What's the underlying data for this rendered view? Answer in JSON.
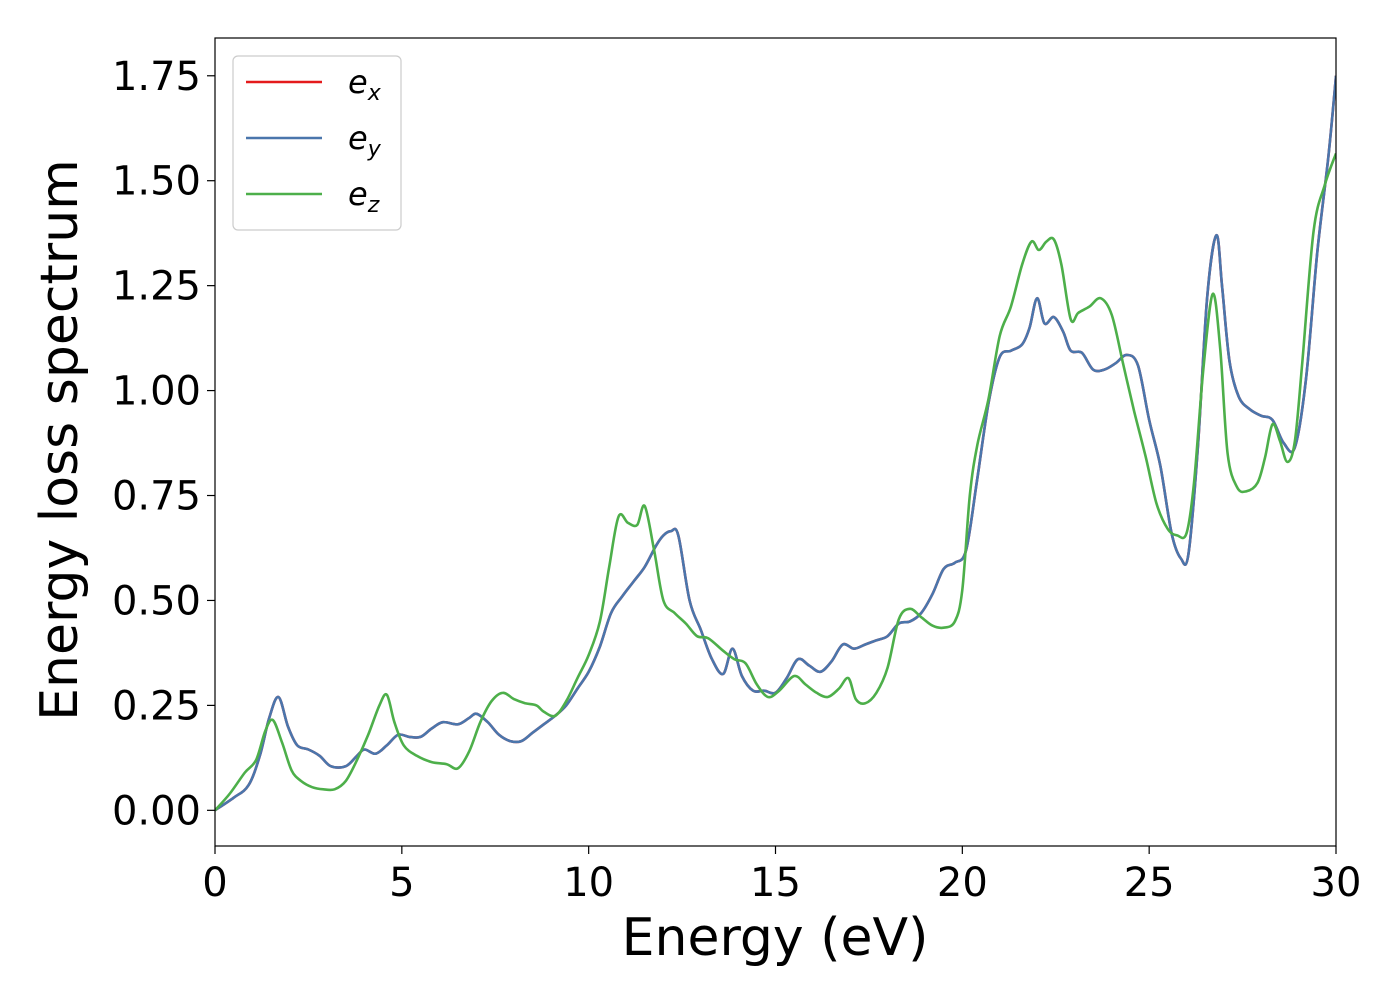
{
  "chart_data": {
    "type": "line",
    "title": "",
    "xlabel": "Energy (eV)",
    "ylabel": "Energy loss spectrum",
    "xlim": [
      0,
      30
    ],
    "ylim": [
      -0.085,
      1.84
    ],
    "xticks": [
      0,
      5,
      10,
      15,
      20,
      25,
      30
    ],
    "yticks": [
      0.0,
      0.25,
      0.5,
      0.75,
      1.0,
      1.25,
      1.5,
      1.75
    ],
    "xtick_labels": [
      "0",
      "5",
      "10",
      "15",
      "20",
      "25",
      "30"
    ],
    "ytick_labels": [
      "0.00",
      "0.25",
      "0.50",
      "0.75",
      "1.00",
      "1.25",
      "1.50",
      "1.75"
    ],
    "grid": false,
    "legend_position": "top-left",
    "series": [
      {
        "name": "e",
        "subscript": "x",
        "color": "#e41a1c",
        "note_hidden_under": "e_y",
        "x": [
          0,
          0.5,
          0.9,
          1.2,
          1.45,
          1.7,
          1.95,
          2.2,
          2.5,
          2.8,
          3.1,
          3.5,
          3.8,
          4.0,
          4.3,
          4.6,
          4.9,
          5.2,
          5.5,
          5.8,
          6.1,
          6.5,
          6.8,
          7.0,
          7.3,
          7.6,
          7.9,
          8.2,
          8.5,
          8.8,
          9.1,
          9.4,
          9.7,
          10.0,
          10.3,
          10.6,
          10.9,
          11.2,
          11.5,
          11.8,
          12.0,
          12.2,
          12.4,
          12.7,
          13.0,
          13.3,
          13.6,
          13.85,
          14.1,
          14.4,
          14.7,
          15.0,
          15.3,
          15.6,
          15.9,
          16.2,
          16.5,
          16.8,
          17.1,
          17.4,
          17.7,
          18.0,
          18.3,
          18.6,
          18.9,
          19.2,
          19.5,
          19.8,
          20.1,
          20.4,
          20.7,
          21.0,
          21.3,
          21.6,
          21.8,
          22.0,
          22.2,
          22.45,
          22.7,
          22.9,
          23.2,
          23.5,
          23.8,
          24.1,
          24.4,
          24.7,
          25.0,
          25.3,
          25.6,
          25.85,
          26.05,
          26.3,
          26.55,
          26.8,
          26.95,
          27.15,
          27.4,
          27.7,
          28.0,
          28.3,
          28.6,
          28.9,
          29.2,
          29.5,
          29.8,
          30.0
        ],
        "y": [
          0,
          0.03,
          0.06,
          0.13,
          0.22,
          0.27,
          0.2,
          0.155,
          0.145,
          0.13,
          0.105,
          0.105,
          0.13,
          0.145,
          0.135,
          0.155,
          0.18,
          0.175,
          0.175,
          0.195,
          0.21,
          0.205,
          0.22,
          0.23,
          0.21,
          0.18,
          0.165,
          0.165,
          0.185,
          0.205,
          0.225,
          0.25,
          0.29,
          0.33,
          0.39,
          0.47,
          0.51,
          0.545,
          0.58,
          0.63,
          0.655,
          0.665,
          0.655,
          0.5,
          0.43,
          0.36,
          0.325,
          0.385,
          0.32,
          0.285,
          0.285,
          0.28,
          0.315,
          0.36,
          0.345,
          0.33,
          0.355,
          0.395,
          0.385,
          0.395,
          0.405,
          0.415,
          0.445,
          0.45,
          0.47,
          0.515,
          0.575,
          0.59,
          0.62,
          0.79,
          0.97,
          1.08,
          1.095,
          1.11,
          1.15,
          1.22,
          1.16,
          1.175,
          1.14,
          1.095,
          1.09,
          1.05,
          1.05,
          1.065,
          1.085,
          1.06,
          0.93,
          0.82,
          0.66,
          0.6,
          0.61,
          0.86,
          1.22,
          1.37,
          1.25,
          1.07,
          0.985,
          0.955,
          0.94,
          0.93,
          0.875,
          0.865,
          1.03,
          1.33,
          1.56,
          1.75
        ]
      },
      {
        "name": "e",
        "subscript": "y",
        "color": "#4a76ac",
        "x": [
          0,
          0.5,
          0.9,
          1.2,
          1.45,
          1.7,
          1.95,
          2.2,
          2.5,
          2.8,
          3.1,
          3.5,
          3.8,
          4.0,
          4.3,
          4.6,
          4.9,
          5.2,
          5.5,
          5.8,
          6.1,
          6.5,
          6.8,
          7.0,
          7.3,
          7.6,
          7.9,
          8.2,
          8.5,
          8.8,
          9.1,
          9.4,
          9.7,
          10.0,
          10.3,
          10.6,
          10.9,
          11.2,
          11.5,
          11.8,
          12.0,
          12.2,
          12.4,
          12.7,
          13.0,
          13.3,
          13.6,
          13.85,
          14.1,
          14.4,
          14.7,
          15.0,
          15.3,
          15.6,
          15.9,
          16.2,
          16.5,
          16.8,
          17.1,
          17.4,
          17.7,
          18.0,
          18.3,
          18.6,
          18.9,
          19.2,
          19.5,
          19.8,
          20.1,
          20.4,
          20.7,
          21.0,
          21.3,
          21.6,
          21.8,
          22.0,
          22.2,
          22.45,
          22.7,
          22.9,
          23.2,
          23.5,
          23.8,
          24.1,
          24.4,
          24.7,
          25.0,
          25.3,
          25.6,
          25.85,
          26.05,
          26.3,
          26.55,
          26.8,
          26.95,
          27.15,
          27.4,
          27.7,
          28.0,
          28.3,
          28.6,
          28.9,
          29.2,
          29.5,
          29.8,
          30.0
        ],
        "y": [
          0,
          0.03,
          0.06,
          0.13,
          0.22,
          0.27,
          0.2,
          0.155,
          0.145,
          0.13,
          0.105,
          0.105,
          0.13,
          0.145,
          0.135,
          0.155,
          0.18,
          0.175,
          0.175,
          0.195,
          0.21,
          0.205,
          0.22,
          0.23,
          0.21,
          0.18,
          0.165,
          0.165,
          0.185,
          0.205,
          0.225,
          0.25,
          0.29,
          0.33,
          0.39,
          0.47,
          0.51,
          0.545,
          0.58,
          0.63,
          0.655,
          0.665,
          0.655,
          0.5,
          0.43,
          0.36,
          0.325,
          0.385,
          0.32,
          0.285,
          0.285,
          0.28,
          0.315,
          0.36,
          0.345,
          0.33,
          0.355,
          0.395,
          0.385,
          0.395,
          0.405,
          0.415,
          0.445,
          0.45,
          0.47,
          0.515,
          0.575,
          0.59,
          0.62,
          0.79,
          0.97,
          1.08,
          1.095,
          1.11,
          1.15,
          1.22,
          1.16,
          1.175,
          1.14,
          1.095,
          1.09,
          1.05,
          1.05,
          1.065,
          1.085,
          1.06,
          0.93,
          0.82,
          0.66,
          0.6,
          0.61,
          0.86,
          1.22,
          1.37,
          1.25,
          1.07,
          0.985,
          0.955,
          0.94,
          0.93,
          0.875,
          0.865,
          1.03,
          1.33,
          1.56,
          1.75
        ]
      },
      {
        "name": "e",
        "subscript": "z",
        "color": "#4daf4a",
        "x": [
          0,
          0.4,
          0.8,
          1.1,
          1.35,
          1.55,
          1.8,
          2.05,
          2.3,
          2.6,
          2.9,
          3.2,
          3.5,
          3.8,
          4.1,
          4.4,
          4.6,
          4.8,
          5.05,
          5.4,
          5.8,
          6.2,
          6.5,
          6.8,
          7.1,
          7.4,
          7.7,
          8.0,
          8.3,
          8.6,
          8.8,
          9.1,
          9.4,
          9.7,
          10.0,
          10.3,
          10.55,
          10.8,
          11.05,
          11.3,
          11.5,
          11.75,
          12.0,
          12.3,
          12.6,
          12.9,
          13.2,
          13.6,
          13.9,
          14.2,
          14.5,
          14.8,
          15.1,
          15.5,
          15.8,
          16.1,
          16.4,
          16.7,
          16.95,
          17.15,
          17.4,
          17.7,
          18.0,
          18.3,
          18.6,
          18.9,
          19.2,
          19.5,
          19.8,
          20.0,
          20.2,
          20.4,
          20.7,
          21.0,
          21.3,
          21.6,
          21.85,
          22.05,
          22.25,
          22.45,
          22.65,
          22.9,
          23.1,
          23.4,
          23.7,
          24.0,
          24.3,
          24.6,
          24.9,
          25.2,
          25.5,
          25.75,
          26.0,
          26.2,
          26.45,
          26.7,
          26.9,
          27.1,
          27.35,
          27.6,
          27.9,
          28.1,
          28.3,
          28.5,
          28.7,
          28.9,
          29.1,
          29.4,
          29.7,
          30.0
        ],
        "y": [
          0,
          0.04,
          0.09,
          0.12,
          0.19,
          0.215,
          0.16,
          0.095,
          0.07,
          0.055,
          0.05,
          0.05,
          0.07,
          0.12,
          0.18,
          0.25,
          0.275,
          0.21,
          0.155,
          0.13,
          0.115,
          0.11,
          0.1,
          0.14,
          0.21,
          0.26,
          0.28,
          0.265,
          0.255,
          0.25,
          0.235,
          0.225,
          0.26,
          0.315,
          0.37,
          0.45,
          0.58,
          0.7,
          0.685,
          0.68,
          0.725,
          0.62,
          0.5,
          0.47,
          0.445,
          0.415,
          0.41,
          0.38,
          0.36,
          0.35,
          0.3,
          0.27,
          0.285,
          0.32,
          0.3,
          0.28,
          0.27,
          0.29,
          0.315,
          0.265,
          0.255,
          0.28,
          0.34,
          0.455,
          0.48,
          0.46,
          0.44,
          0.435,
          0.45,
          0.525,
          0.75,
          0.87,
          0.98,
          1.13,
          1.2,
          1.3,
          1.355,
          1.335,
          1.355,
          1.36,
          1.3,
          1.17,
          1.185,
          1.2,
          1.22,
          1.18,
          1.065,
          0.95,
          0.845,
          0.73,
          0.67,
          0.655,
          0.66,
          0.78,
          1.05,
          1.23,
          1.1,
          0.85,
          0.77,
          0.76,
          0.78,
          0.84,
          0.92,
          0.88,
          0.83,
          0.88,
          1.07,
          1.38,
          1.49,
          1.565
        ]
      }
    ]
  }
}
